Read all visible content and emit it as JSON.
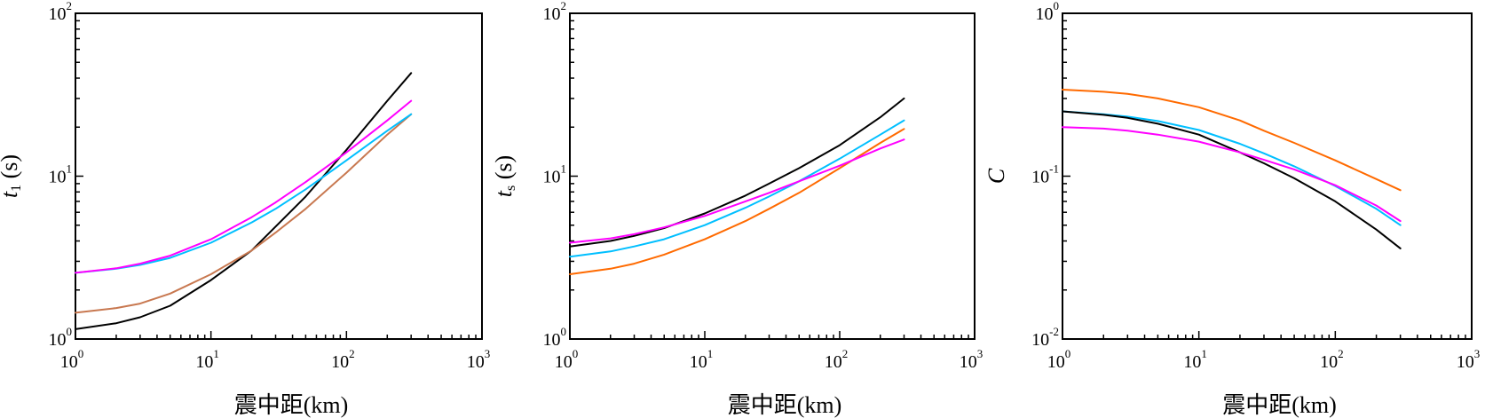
{
  "chart_data": [
    {
      "type": "line",
      "title": "",
      "xlabel": "震中距(km)",
      "ylabel_main": "t",
      "ylabel_sub": "1",
      "ylabel_unit": " (s)",
      "xscale": "log",
      "yscale": "log",
      "xlim": [
        1,
        1000
      ],
      "ylim": [
        1,
        100
      ],
      "x_ticks": [
        {
          "base": "10",
          "exp": "0"
        },
        {
          "base": "10",
          "exp": "1"
        },
        {
          "base": "10",
          "exp": "2"
        },
        {
          "base": "10",
          "exp": "3"
        }
      ],
      "y_ticks": [
        {
          "base": "10",
          "exp": "0"
        },
        {
          "base": "10",
          "exp": "1"
        },
        {
          "base": "10",
          "exp": "2"
        }
      ],
      "grid": false,
      "x": [
        1,
        2,
        3,
        5,
        10,
        20,
        30,
        50,
        100,
        200,
        300
      ],
      "series": [
        {
          "color": "#000000",
          "values": [
            1.15,
            1.25,
            1.36,
            1.6,
            2.3,
            3.5,
            4.9,
            7.5,
            14.5,
            29,
            43
          ]
        },
        {
          "color": "#c87850",
          "values": [
            1.45,
            1.55,
            1.65,
            1.9,
            2.5,
            3.5,
            4.5,
            6.3,
            10.5,
            18,
            24
          ]
        },
        {
          "color": "#00bfff",
          "values": [
            2.55,
            2.7,
            2.85,
            3.15,
            3.9,
            5.2,
            6.3,
            8.3,
            12.5,
            19,
            24
          ]
        },
        {
          "color": "#ff00ff",
          "values": [
            2.55,
            2.72,
            2.9,
            3.25,
            4.1,
            5.6,
            6.9,
            9.2,
            14,
            22,
            29
          ]
        }
      ]
    },
    {
      "type": "line",
      "title": "",
      "xlabel": "震中距(km)",
      "ylabel_main": "t",
      "ylabel_sub": "s",
      "ylabel_unit": " (s)",
      "xscale": "log",
      "yscale": "log",
      "xlim": [
        1,
        1000
      ],
      "ylim": [
        1,
        100
      ],
      "x_ticks": [
        {
          "base": "10",
          "exp": "0"
        },
        {
          "base": "10",
          "exp": "1"
        },
        {
          "base": "10",
          "exp": "2"
        },
        {
          "base": "10",
          "exp": "3"
        }
      ],
      "y_ticks": [
        {
          "base": "10",
          "exp": "0"
        },
        {
          "base": "10",
          "exp": "1"
        },
        {
          "base": "10",
          "exp": "2"
        }
      ],
      "grid": false,
      "x": [
        1,
        2,
        3,
        5,
        10,
        20,
        30,
        50,
        100,
        200,
        300
      ],
      "series": [
        {
          "color": "#000000",
          "values": [
            3.7,
            4.0,
            4.3,
            4.8,
            5.9,
            7.6,
            9.0,
            11.2,
            15.5,
            23,
            30
          ]
        },
        {
          "color": "#00bfff",
          "values": [
            3.2,
            3.45,
            3.7,
            4.1,
            5.0,
            6.4,
            7.5,
            9.3,
            12.8,
            18,
            22
          ]
        },
        {
          "color": "#ff6a00",
          "values": [
            2.5,
            2.7,
            2.9,
            3.3,
            4.1,
            5.3,
            6.3,
            7.9,
            11.2,
            16,
            19.5
          ]
        },
        {
          "color": "#ff00ff",
          "values": [
            3.9,
            4.15,
            4.4,
            4.85,
            5.7,
            7.0,
            7.9,
            9.3,
            11.6,
            14.8,
            16.8
          ]
        }
      ]
    },
    {
      "type": "line",
      "title": "",
      "xlabel": "震中距(km)",
      "ylabel_main": "C",
      "ylabel_sub": "",
      "ylabel_unit": "",
      "xscale": "log",
      "yscale": "log",
      "xlim": [
        1,
        1000
      ],
      "ylim": [
        0.01,
        1
      ],
      "x_ticks": [
        {
          "base": "10",
          "exp": "0"
        },
        {
          "base": "10",
          "exp": "1"
        },
        {
          "base": "10",
          "exp": "2"
        },
        {
          "base": "10",
          "exp": "3"
        }
      ],
      "y_ticks": [
        {
          "base": "10",
          "exp": "-2"
        },
        {
          "base": "10",
          "exp": "-1"
        },
        {
          "base": "10",
          "exp": "0"
        }
      ],
      "grid": false,
      "x": [
        1,
        2,
        3,
        5,
        10,
        20,
        30,
        50,
        100,
        200,
        300
      ],
      "series": [
        {
          "color": "#ff6a00",
          "values": [
            0.34,
            0.33,
            0.32,
            0.3,
            0.265,
            0.22,
            0.19,
            0.16,
            0.125,
            0.096,
            0.082
          ]
        },
        {
          "color": "#00bfff",
          "values": [
            0.25,
            0.24,
            0.232,
            0.218,
            0.192,
            0.158,
            0.138,
            0.115,
            0.087,
            0.063,
            0.05
          ]
        },
        {
          "color": "#000000",
          "values": [
            0.25,
            0.238,
            0.228,
            0.21,
            0.18,
            0.14,
            0.12,
            0.097,
            0.07,
            0.047,
            0.036
          ]
        },
        {
          "color": "#ff00ff",
          "values": [
            0.2,
            0.196,
            0.19,
            0.18,
            0.163,
            0.14,
            0.126,
            0.11,
            0.088,
            0.066,
            0.053
          ]
        }
      ]
    }
  ]
}
